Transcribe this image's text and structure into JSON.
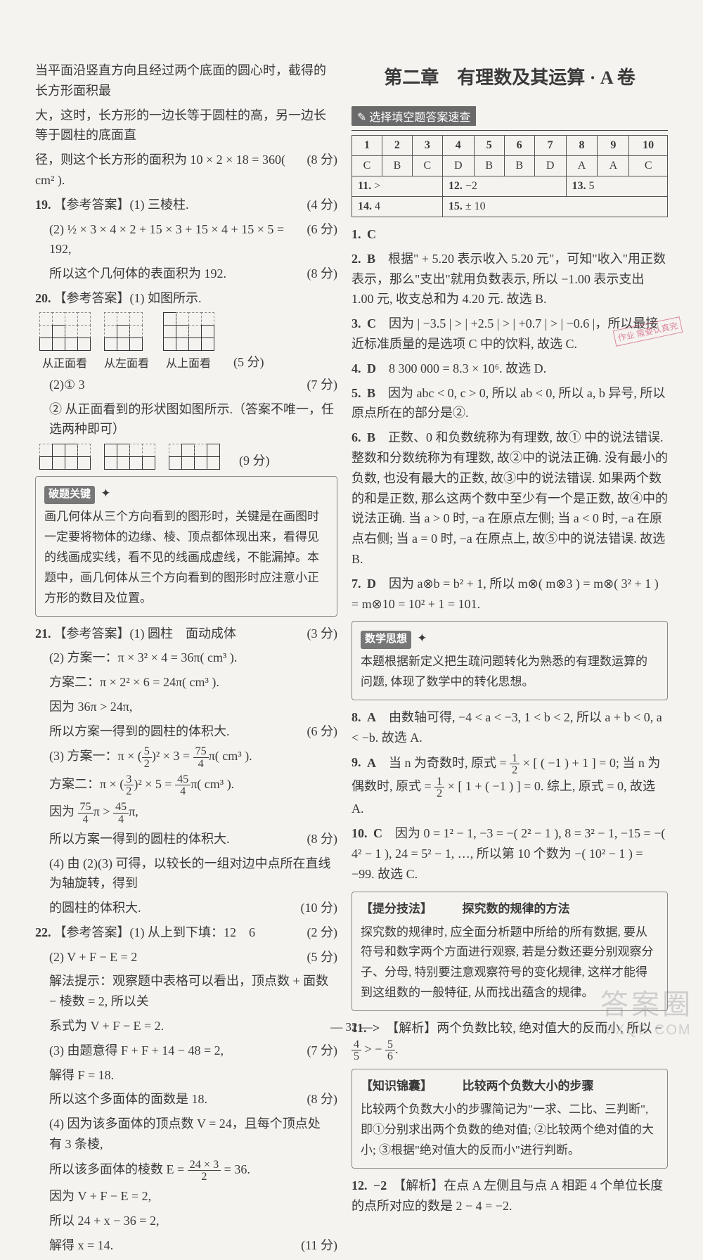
{
  "page_number": "— 32 —",
  "watermark": {
    "line1": "答案圈",
    "line2": "MXQE.COM"
  },
  "stamp": "作业\n需要认真完",
  "left": {
    "intro": [
      {
        "text": "当平面沿竖直方向且经过两个底面的圆心时，截得的长方形面积最",
        "score": ""
      },
      {
        "text": "大，这时，长方形的一边长等于圆柱的高，另一边长等于圆柱的底面直",
        "score": ""
      },
      {
        "text": "径，则这个长方形的面积为 10 × 2 × 18 = 360( cm² ).",
        "score": "(8 分)"
      }
    ],
    "q19": {
      "num": "19.",
      "label": "【参考答案】",
      "lines": [
        {
          "text": "(1) 三棱柱.",
          "score": "(4 分)"
        },
        {
          "text": "(2) ½ × 3 × 4 × 2 + 15 × 3 + 15 × 4 + 15 × 5 = 192,",
          "score": "(6 分)"
        },
        {
          "text": "所以这个几何体的表面积为 192.",
          "score": "(8 分)"
        }
      ]
    },
    "q20": {
      "num": "20.",
      "label": "【参考答案】",
      "line1": "(1) 如图所示.",
      "grids_caption": [
        "从正面看",
        "从左面看",
        "从上面看"
      ],
      "grids_score": "(5 分)",
      "line2": {
        "text": "(2)① 3",
        "score": "(7 分)"
      },
      "line3": "② 从正面看到的形状图如图所示.（答案不唯一，任选两种即可）",
      "grids2_score": "(9 分)",
      "tip": {
        "title": "破题关键",
        "text": "画几何体从三个方向看到的图形时，关键是在画图时一定要将物体的边缘、棱、顶点都体现出来，看得见的线画成实线，看不见的线画成虚线，不能漏掉。本题中，画几何体从三个方向看到的图形时应注意小正方形的数目及位置。"
      }
    },
    "q21": {
      "num": "21.",
      "label": "【参考答案】",
      "lines": [
        {
          "text": "(1) 圆柱　面动成体",
          "score": "(3 分)"
        },
        {
          "text": "(2) 方案一：π × 3² × 4 = 36π( cm³ ).",
          "score": ""
        },
        {
          "text": "方案二：π × 2² × 6 = 24π( cm³ ).",
          "score": ""
        },
        {
          "text": "因为 36π > 24π,",
          "score": ""
        },
        {
          "text": "所以方案一得到的圆柱的体积大.",
          "score": "(6 分)"
        },
        {
          "text_html": "(3) 方案一：π × (<span class='frac'><span class='n'>5</span><span class='d'>2</span></span>)² × 3 = <span class='frac'><span class='n'>75</span><span class='d'>4</span></span>π( cm³ ).",
          "score": ""
        },
        {
          "text_html": "方案二：π × (<span class='frac'><span class='n'>3</span><span class='d'>2</span></span>)² × 5 = <span class='frac'><span class='n'>45</span><span class='d'>4</span></span>π( cm³ ).",
          "score": ""
        },
        {
          "text_html": "因为 <span class='frac'><span class='n'>75</span><span class='d'>4</span></span>π > <span class='frac'><span class='n'>45</span><span class='d'>4</span></span>π,",
          "score": ""
        },
        {
          "text": "所以方案一得到的圆柱的体积大.",
          "score": "(8 分)"
        },
        {
          "text": "(4) 由 (2)(3) 可得，以较长的一组对边中点所在直线为轴旋转，得到",
          "score": ""
        },
        {
          "text": "的圆柱的体积大.",
          "score": "(10 分)"
        }
      ]
    },
    "q22": {
      "num": "22.",
      "label": "【参考答案】",
      "lines": [
        {
          "text": "(1) 从上到下填：12　6",
          "score": "(2 分)"
        },
        {
          "text": "(2) V + F − E = 2",
          "score": "(5 分)"
        },
        {
          "text": "解法提示：观察题中表格可以看出，顶点数 + 面数 − 棱数 = 2, 所以关",
          "score": ""
        },
        {
          "text": "系式为 V + F − E = 2.",
          "score": ""
        },
        {
          "text": "(3) 由题意得 F + F + 14 − 48 = 2,",
          "score": "(7 分)"
        },
        {
          "text": "解得 F = 18.",
          "score": ""
        },
        {
          "text": "所以这个多面体的面数是 18.",
          "score": "(8 分)"
        },
        {
          "text": "(4) 因为该多面体的顶点数 V = 24，且每个顶点处有 3 条棱,",
          "score": ""
        },
        {
          "text_html": "所以该多面体的棱数 E = <span class='frac'><span class='n'>24 × 3</span><span class='d'>2</span></span> = 36.",
          "score": ""
        },
        {
          "text": "因为 V + F − E = 2,",
          "score": ""
        },
        {
          "text": "所以 24 + x − 36 = 2,",
          "score": ""
        },
        {
          "text": "解得 x = 14.",
          "score": "(11 分)"
        }
      ]
    }
  },
  "right": {
    "section_title": "第二章　有理数及其运算 · A 卷",
    "quick_label": "选择填空题答案速查",
    "table": {
      "head": [
        "1",
        "2",
        "3",
        "4",
        "5",
        "6",
        "7",
        "8",
        "9",
        "10"
      ],
      "row1": [
        "C",
        "B",
        "C",
        "D",
        "B",
        "B",
        "D",
        "A",
        "A",
        "C"
      ],
      "row2": [
        {
          "label": "11.",
          "val": ">",
          "span": 3
        },
        {
          "label": "12.",
          "val": "−2",
          "span": 4
        },
        {
          "label": "13.",
          "val": "5",
          "span": 3
        }
      ],
      "row3": [
        {
          "label": "14.",
          "val": "4",
          "span": 3
        },
        {
          "label": "15.",
          "val": "± 10",
          "span": 7
        }
      ]
    },
    "items": [
      {
        "num": "1.",
        "ans": "C",
        "text": ""
      },
      {
        "num": "2.",
        "ans": "B",
        "text": "根据\" + 5.20 表示收入 5.20 元\"，可知\"收入\"用正数表示，那么\"支出\"就用负数表示, 所以 −1.00 表示支出 1.00 元, 收支总和为 4.20 元. 故选 B."
      },
      {
        "num": "3.",
        "ans": "C",
        "text": "因为 | −3.5 | > | +2.5 | > | +0.7 | > | −0.6 |，所以最接近标准质量的是选项 C 中的饮料, 故选 C."
      },
      {
        "num": "4.",
        "ans": "D",
        "text": "8 300 000 = 8.3 × 10⁶. 故选 D."
      },
      {
        "num": "5.",
        "ans": "B",
        "text": "因为 abc < 0, c > 0, 所以 ab < 0, 所以 a, b 异号, 所以原点所在的部分是②."
      },
      {
        "num": "6.",
        "ans": "B",
        "text": "正数、0 和负数统称为有理数, 故① 中的说法错误. 整数和分数统称为有理数, 故②中的说法正确. 没有最小的负数, 也没有最大的正数, 故③中的说法错误. 如果两个数的和是正数, 那么这两个数中至少有一个是正数, 故④中的说法正确. 当 a > 0 时, −a 在原点左侧; 当 a < 0 时, −a 在原点右侧; 当 a = 0 时, −a 在原点上, 故⑤中的说法错误. 故选 B."
      },
      {
        "num": "7.",
        "ans": "D",
        "text": "因为 a⊗b = b² + 1, 所以 m⊗( m⊗3 ) = m⊗( 3² + 1 ) = m⊗10 = 10² + 1 = 101."
      }
    ],
    "tip1": {
      "title": "数学思想",
      "text": "本题根据新定义把生疏问题转化为熟悉的有理数运算的问题, 体现了数学中的转化思想。"
    },
    "items2": [
      {
        "num": "8.",
        "ans": "A",
        "text": "由数轴可得, −4 < a < −3, 1 < b < 2, 所以 a + b < 0, a < −b. 故选 A."
      },
      {
        "num": "9.",
        "ans": "A",
        "text_html": "当 n 为奇数时, 原式 = <span class='frac'><span class='n'>1</span><span class='d'>2</span></span> × [ ( −1 ) + 1 ] = 0; 当 n 为偶数时, 原式 = <span class='frac'><span class='n'>1</span><span class='d'>2</span></span> × [ 1 + ( −1 ) ] = 0. 综上, 原式 = 0, 故选 A."
      },
      {
        "num": "10.",
        "ans": "C",
        "text": "因为 0 = 1² − 1, −3 = −( 2² − 1 ), 8 = 3² − 1, −15 = −( 4² − 1 ), 24 = 5² − 1, …, 所以第 10 个数为 −( 10² − 1 ) = −99. 故选 C."
      }
    ],
    "tip2": {
      "title": "【提分技法】",
      "subtitle": "探究数的规律的方法",
      "text": "探究数的规律时, 应全面分析题中所给的所有数据, 要从符号和数字两个方面进行观察, 若是分数还要分别观察分子、分母, 特别要注意观察符号的变化规律, 这样才能得到这组数的一般特征, 从而找出蕴含的规律。"
    },
    "items3": [
      {
        "num": "11.",
        "ans": ">",
        "text_html": "【解析】两个负数比较, 绝对值大的反而小, 所以 − <span class='frac'><span class='n'>4</span><span class='d'>5</span></span> > − <span class='frac'><span class='n'>5</span><span class='d'>6</span></span>."
      }
    ],
    "tip3": {
      "title": "【知识锦囊】",
      "subtitle": "比较两个负数大小的步骤",
      "text": "比较两个负数大小的步骤简记为\"一求、二比、三判断\", 即①分别求出两个负数的绝对值; ②比较两个绝对值的大小; ③根据\"绝对值大的反而小\"进行判断。"
    },
    "items4": [
      {
        "num": "12.",
        "ans": "−2",
        "text": "【解析】在点 A 左侧且与点 A 相距 4 个单位长度的点所对应的数是 2 − 4 = −2."
      }
    ]
  }
}
